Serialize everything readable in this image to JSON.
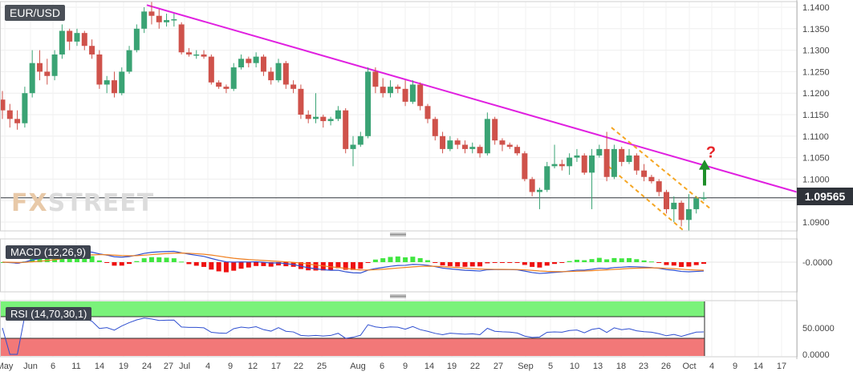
{
  "chart_data": [
    {
      "type": "candlestick",
      "symbol": "EUR/USD",
      "last_price": "1.09565",
      "price_ticks": [
        "1.1400",
        "1.1350",
        "1.1300",
        "1.1250",
        "1.1200",
        "1.1150",
        "1.1100",
        "1.1050",
        "1.1000",
        "1.0950",
        "1.0900"
      ],
      "ylim": [
        1.0875,
        1.1415
      ],
      "x_ticks": [
        "May",
        "Jun",
        "6",
        "11",
        "14",
        "19",
        "24",
        "27",
        "Jul",
        "4",
        "9",
        "12",
        "17",
        "22",
        "25",
        "Aug",
        "6",
        "9",
        "14",
        "19",
        "22",
        "27",
        "Sep",
        "5",
        "10",
        "13",
        "18",
        "23",
        "26",
        "Oct",
        "4",
        "9",
        "14",
        "17"
      ],
      "candles": [
        [
          1.1185,
          1.1205,
          1.114,
          1.116
        ],
        [
          1.116,
          1.1175,
          1.112,
          1.114
        ],
        [
          1.114,
          1.116,
          1.1115,
          1.113
        ],
        [
          1.113,
          1.1215,
          1.112,
          1.12
        ],
        [
          1.12,
          1.13,
          1.119,
          1.127
        ],
        [
          1.127,
          1.13,
          1.123,
          1.125
        ],
        [
          1.125,
          1.128,
          1.122,
          1.124
        ],
        [
          1.124,
          1.13,
          1.123,
          1.129
        ],
        [
          1.129,
          1.136,
          1.128,
          1.1345
        ],
        [
          1.1345,
          1.135,
          1.13,
          1.132
        ],
        [
          1.132,
          1.135,
          1.131,
          1.134
        ],
        [
          1.134,
          1.1345,
          1.13,
          1.131
        ],
        [
          1.131,
          1.1325,
          1.128,
          1.129
        ],
        [
          1.129,
          1.13,
          1.121,
          1.122
        ],
        [
          1.122,
          1.124,
          1.12,
          1.123
        ],
        [
          1.123,
          1.125,
          1.119,
          1.12
        ],
        [
          1.12,
          1.126,
          1.1195,
          1.125
        ],
        [
          1.125,
          1.131,
          1.1245,
          1.13
        ],
        [
          1.13,
          1.136,
          1.1295,
          1.135
        ],
        [
          1.135,
          1.14,
          1.134,
          1.139
        ],
        [
          1.139,
          1.1412,
          1.136,
          1.138
        ],
        [
          1.138,
          1.1395,
          1.135,
          1.1365
        ],
        [
          1.1365,
          1.1385,
          1.1355,
          1.137
        ],
        [
          1.137,
          1.1385,
          1.1355,
          1.1372
        ],
        [
          1.136,
          1.1365,
          1.129,
          1.1295
        ],
        [
          1.1295,
          1.1305,
          1.1285,
          1.129
        ],
        [
          1.129,
          1.13,
          1.128,
          1.129
        ],
        [
          1.129,
          1.13,
          1.128,
          1.1285
        ],
        [
          1.1285,
          1.129,
          1.122,
          1.1225
        ],
        [
          1.1225,
          1.123,
          1.121,
          1.1215
        ],
        [
          1.1215,
          1.122,
          1.12,
          1.121
        ],
        [
          1.121,
          1.127,
          1.1205,
          1.126
        ],
        [
          1.126,
          1.129,
          1.1255,
          1.128
        ],
        [
          1.128,
          1.1285,
          1.126,
          1.127
        ],
        [
          1.127,
          1.1295,
          1.126,
          1.1285
        ],
        [
          1.1285,
          1.129,
          1.124,
          1.125
        ],
        [
          1.125,
          1.126,
          1.122,
          1.123
        ],
        [
          1.123,
          1.128,
          1.1225,
          1.127
        ],
        [
          1.127,
          1.1275,
          1.121,
          1.122
        ],
        [
          1.122,
          1.123,
          1.12,
          1.121
        ],
        [
          1.121,
          1.122,
          1.114,
          1.115
        ],
        [
          1.115,
          1.116,
          1.113,
          1.114
        ],
        [
          1.114,
          1.12,
          1.113,
          1.1145
        ],
        [
          1.1145,
          1.115,
          1.112,
          1.1135
        ],
        [
          1.1135,
          1.1145,
          1.1125,
          1.114
        ],
        [
          1.114,
          1.117,
          1.1135,
          1.116
        ],
        [
          1.116,
          1.1165,
          1.106,
          1.107
        ],
        [
          1.107,
          1.11,
          1.103,
          1.108
        ],
        [
          1.108,
          1.111,
          1.1075,
          1.11
        ],
        [
          1.11,
          1.126,
          1.1095,
          1.125
        ],
        [
          1.125,
          1.126,
          1.12,
          1.1215
        ],
        [
          1.1215,
          1.1235,
          1.119,
          1.12
        ],
        [
          1.12,
          1.123,
          1.119,
          1.1215
        ],
        [
          1.1215,
          1.122,
          1.12,
          1.121
        ],
        [
          1.121,
          1.123,
          1.117,
          1.118
        ],
        [
          1.118,
          1.123,
          1.1175,
          1.122
        ],
        [
          1.122,
          1.1225,
          1.116,
          1.117
        ],
        [
          1.117,
          1.1175,
          1.113,
          1.114
        ],
        [
          1.114,
          1.1145,
          1.109,
          1.11
        ],
        [
          1.11,
          1.111,
          1.106,
          1.107
        ],
        [
          1.107,
          1.11,
          1.1065,
          1.109
        ],
        [
          1.109,
          1.1095,
          1.107,
          1.108
        ],
        [
          1.108,
          1.109,
          1.106,
          1.107
        ],
        [
          1.107,
          1.1085,
          1.106,
          1.1075
        ],
        [
          1.1075,
          1.108,
          1.105,
          1.106
        ],
        [
          1.106,
          1.1155,
          1.1055,
          1.114
        ],
        [
          1.114,
          1.1145,
          1.108,
          1.109
        ],
        [
          1.109,
          1.1095,
          1.1065,
          1.108
        ],
        [
          1.108,
          1.1085,
          1.107,
          1.1075
        ],
        [
          1.1075,
          1.108,
          1.1055,
          1.106
        ],
        [
          1.106,
          1.1065,
          1.0995,
          1.1
        ],
        [
          1.1,
          1.1005,
          1.096,
          1.097
        ],
        [
          1.097,
          1.098,
          1.093,
          1.0975
        ],
        [
          1.0975,
          1.104,
          1.097,
          1.103
        ],
        [
          1.103,
          1.108,
          1.1025,
          1.1035
        ],
        [
          1.1035,
          1.1045,
          1.102,
          1.103
        ],
        [
          1.103,
          1.106,
          1.101,
          1.105
        ],
        [
          1.105,
          1.107,
          1.104,
          1.1055
        ],
        [
          1.1055,
          1.106,
          1.101,
          1.1015
        ],
        [
          1.1015,
          1.107,
          1.093,
          1.1055
        ],
        [
          1.1055,
          1.108,
          1.105,
          1.107
        ],
        [
          1.107,
          1.111,
          1.0995,
          1.1005
        ],
        [
          1.1005,
          1.108,
          1.1,
          1.107
        ],
        [
          1.107,
          1.1075,
          1.103,
          1.104
        ],
        [
          1.104,
          1.107,
          1.1035,
          1.1055
        ],
        [
          1.1055,
          1.106,
          1.101,
          1.102
        ],
        [
          1.102,
          1.1035,
          1.0995,
          1.1005
        ],
        [
          1.1005,
          1.101,
          1.099,
          1.0995
        ],
        [
          1.0995,
          1.1,
          1.096,
          1.097
        ],
        [
          1.097,
          1.0975,
          1.092,
          1.093
        ],
        [
          1.093,
          1.096,
          1.09,
          1.0945
        ],
        [
          1.0945,
          1.095,
          1.089,
          1.0905
        ],
        [
          1.0905,
          1.0965,
          1.088,
          1.093
        ],
        [
          1.093,
          1.096,
          1.092,
          1.0955
        ],
        [
          1.0955,
          1.097,
          1.095,
          1.0957
        ]
      ],
      "annotations": {
        "question_mark": "?",
        "arrow_direction": "up",
        "line_colors": {
          "trendline": "#e020e0",
          "channel": "#f5a623",
          "arrow": "#1f8f2a",
          "question": "#e8262b"
        }
      },
      "colors": {
        "bull": "#3aa374",
        "bear": "#cf524b",
        "box": "#4b5058"
      }
    },
    {
      "type": "macd-panel",
      "label": "MACD (12,26,9)",
      "tick": "-0.0000",
      "colors": {
        "hist_pos": "#40e640",
        "hist_neg": "#ee1111",
        "macd": "#2f4fd0",
        "signal": "#f08020"
      }
    },
    {
      "type": "rsi-panel",
      "label": "RSI (14,70,30,1)",
      "ticks": [
        "50.0000",
        "0.0000"
      ],
      "colors": {
        "line": "#2f4fd0",
        "overbought": "#7af27a",
        "oversold": "#f27878"
      }
    }
  ],
  "watermark": {
    "fx": "FX",
    "street": "STREET"
  }
}
